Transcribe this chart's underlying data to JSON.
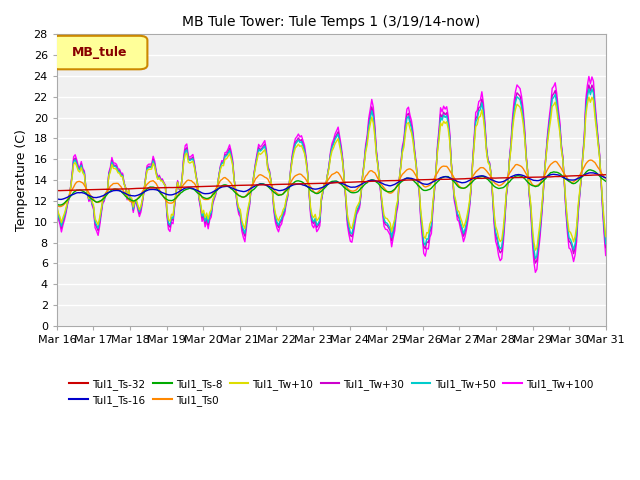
{
  "title": "MB Tule Tower: Tule Temps 1 (3/19/14-now)",
  "ylabel": "Temperature (C)",
  "ylim": [
    0,
    28
  ],
  "yticks": [
    0,
    2,
    4,
    6,
    8,
    10,
    12,
    14,
    16,
    18,
    20,
    22,
    24,
    26,
    28
  ],
  "x_labels": [
    "Mar 16",
    "Mar 17",
    "Mar 18",
    "Mar 19",
    "Mar 20",
    "Mar 21",
    "Mar 22",
    "Mar 23",
    "Mar 24",
    "Mar 25",
    "Mar 26",
    "Mar 27",
    "Mar 28",
    "Mar 29",
    "Mar 30",
    "Mar 31"
  ],
  "background_color": "#ffffff",
  "plot_bg_color": "#f0f0f0",
  "grid_color": "#ffffff",
  "series": [
    {
      "label": "Tul1_Ts-32",
      "color": "#cc0000"
    },
    {
      "label": "Tul1_Ts-16",
      "color": "#0000cc"
    },
    {
      "label": "Tul1_Ts-8",
      "color": "#00aa00"
    },
    {
      "label": "Tul1_Ts0",
      "color": "#ff8800"
    },
    {
      "label": "Tul1_Tw+10",
      "color": "#dddd00"
    },
    {
      "label": "Tul1_Tw+30",
      "color": "#cc00cc"
    },
    {
      "label": "Tul1_Tw+50",
      "color": "#00cccc"
    },
    {
      "label": "Tul1_Tw+100",
      "color": "#ff00ff"
    }
  ],
  "legend_box_color": "#ffff99",
  "legend_box_text": "MB_tule",
  "legend_box_border": "#cc8800"
}
